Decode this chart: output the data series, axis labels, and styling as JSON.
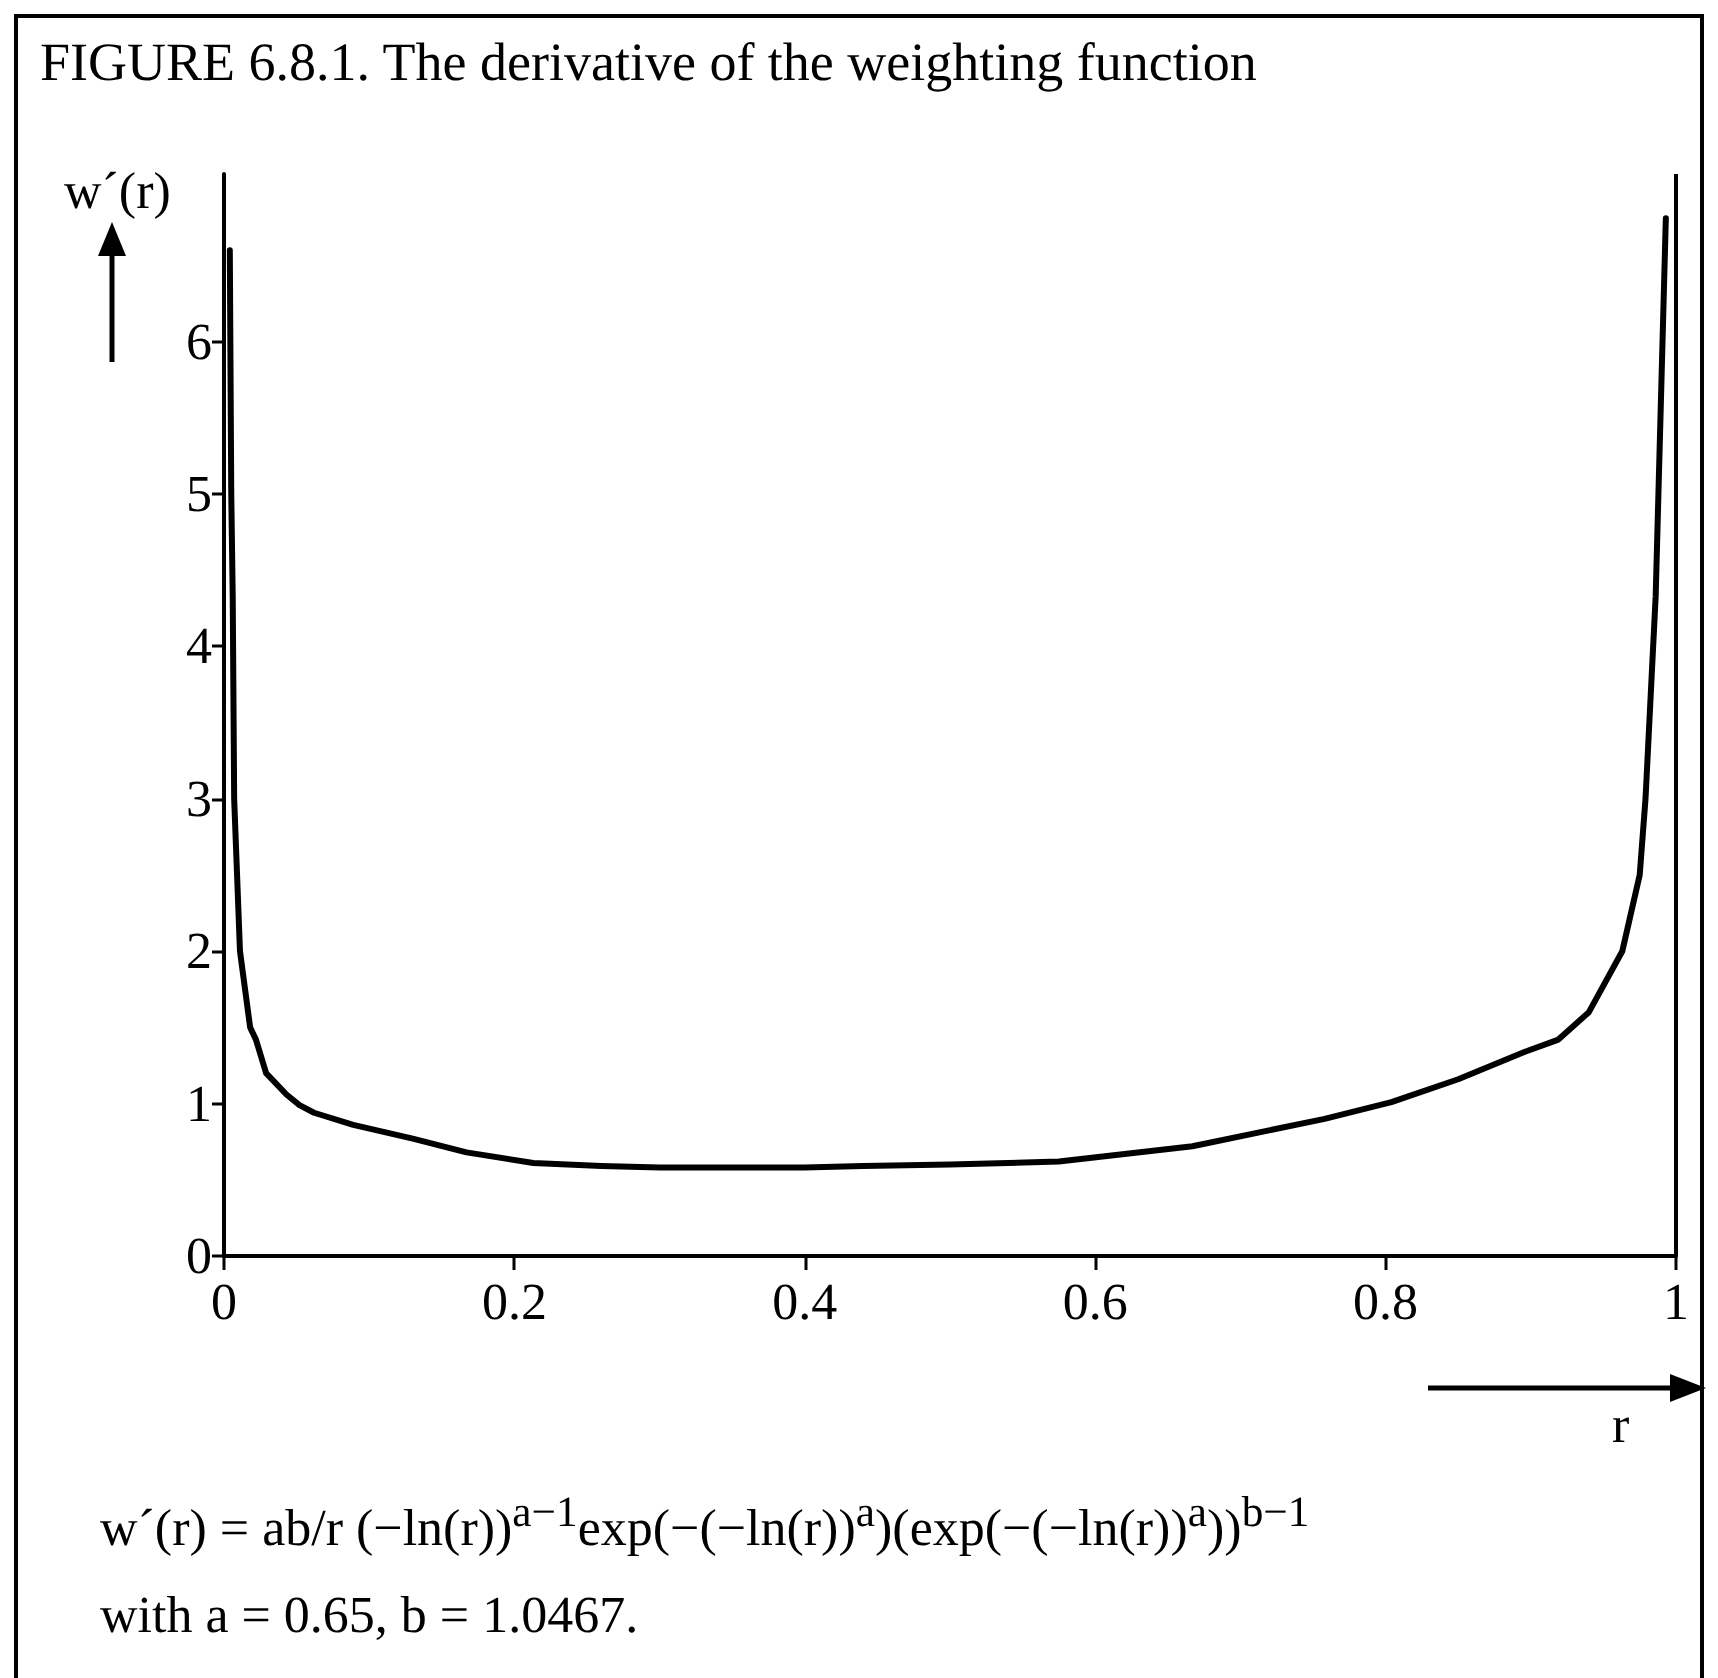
{
  "chart_data": {
    "type": "line",
    "title": "FIGURE 6.8.1. The derivative of the weighting function",
    "xlabel": "r",
    "ylabel": "w´(r)",
    "annotations": [
      "w´(r) = ab/r (−ln(r))$^{a−1}$exp(−(−ln(r))$^{a}$)(exp(−(−ln(r))$^{a}$))$^{b−1}$",
      "with a = 0.65, b = 1.0467."
    ],
    "x": [
      0.004,
      0.005,
      0.006,
      0.007,
      0.011,
      0.018,
      0.022,
      0.029,
      0.043,
      0.052,
      0.062,
      0.089,
      0.13,
      0.167,
      0.213,
      0.26,
      0.3,
      0.35,
      0.4,
      0.44,
      0.5,
      0.575,
      0.667,
      0.758,
      0.804,
      0.85,
      0.896,
      0.919,
      0.94,
      0.963,
      0.975,
      0.979,
      0.986,
      0.993
    ],
    "series": [
      {
        "color": "#000000",
        "values": [
          6.6,
          5.0,
          4.33,
          3.0,
          2.0,
          1.5,
          1.42,
          1.2,
          1.06,
          0.99,
          0.94,
          0.86,
          0.77,
          0.68,
          0.61,
          0.59,
          0.58,
          0.58,
          0.58,
          0.59,
          0.6,
          0.62,
          0.72,
          0.9,
          1.01,
          1.16,
          1.34,
          1.42,
          1.6,
          2.0,
          2.5,
          3.0,
          4.33,
          6.81
        ]
      }
    ],
    "xlim": [
      0,
      1
    ],
    "ylim": [
      0,
      7.1
    ],
    "xticks": [
      0,
      0.2,
      0.4,
      0.6,
      0.8,
      1
    ],
    "yticks": [
      0,
      1,
      2,
      3,
      4,
      5,
      6
    ],
    "line_style": "solid",
    "ref_lines": [
      {
        "axis": "x",
        "value": 1
      }
    ]
  }
}
